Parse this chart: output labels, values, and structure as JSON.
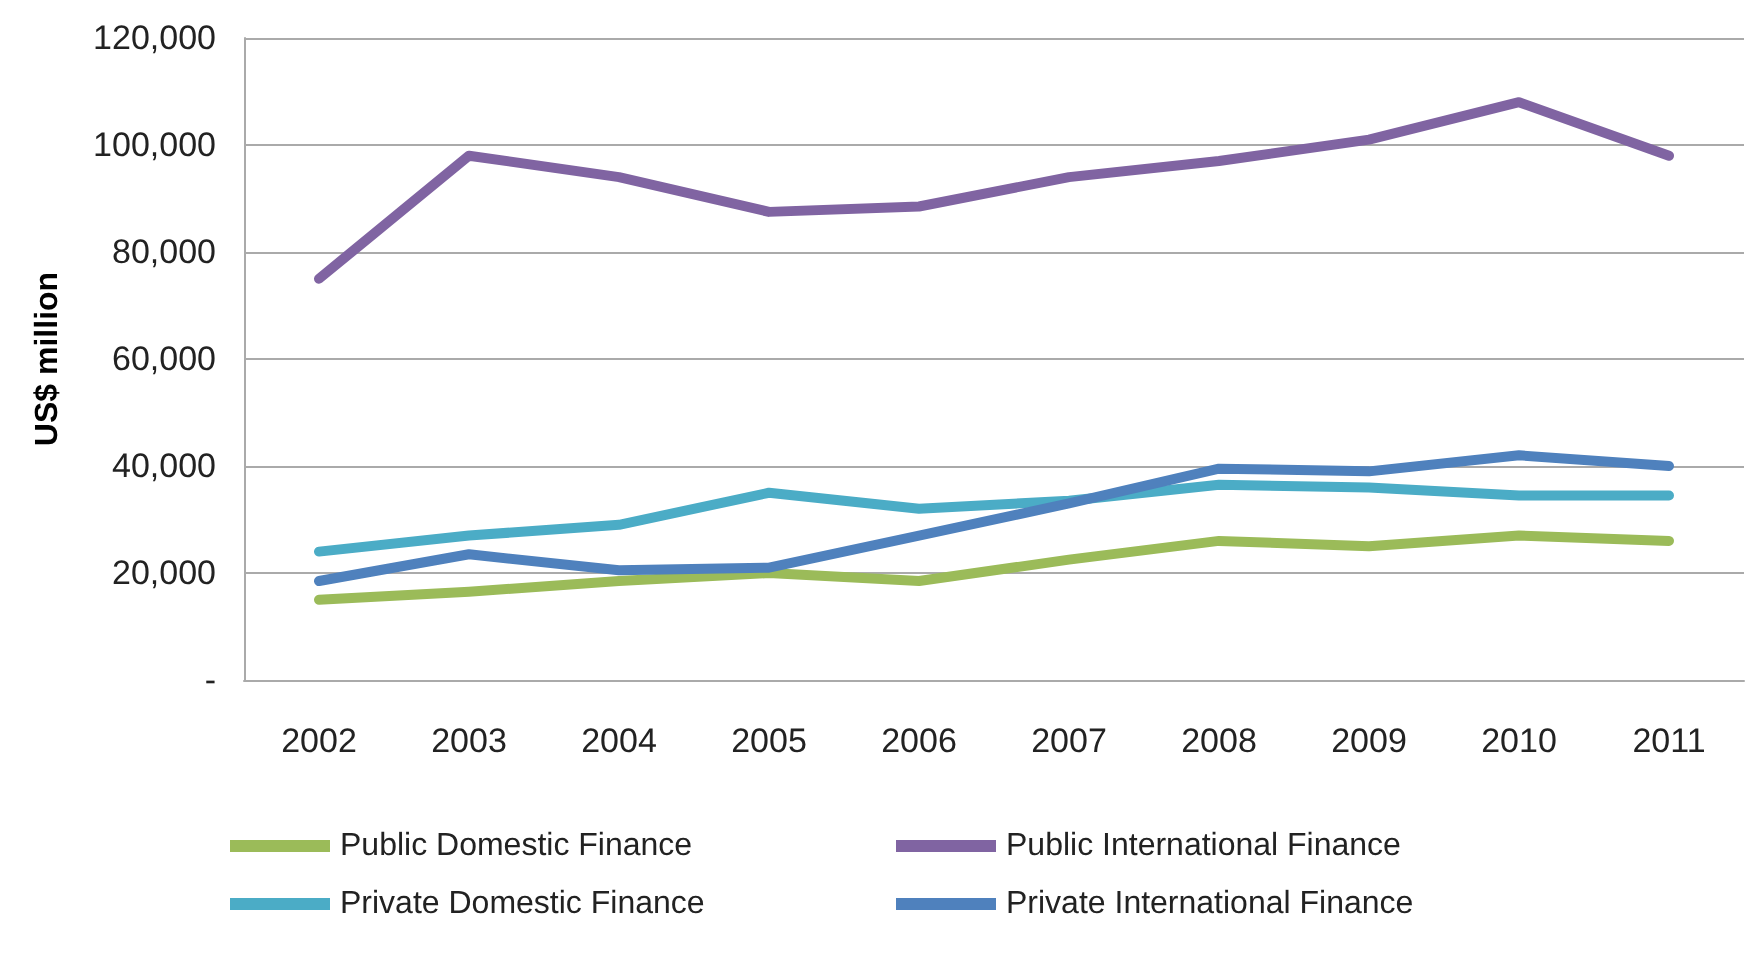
{
  "chart_data": {
    "type": "line",
    "ylabel": "US$ million",
    "categories": [
      "2002",
      "2003",
      "2004",
      "2005",
      "2006",
      "2007",
      "2008",
      "2009",
      "2010",
      "2011"
    ],
    "series": [
      {
        "name": "Public Domestic Finance",
        "color": "#9bbb59",
        "values": [
          15000,
          16500,
          18500,
          20000,
          18500,
          22500,
          26000,
          25000,
          27000,
          26000
        ]
      },
      {
        "name": "Public International Finance",
        "color": "#8064a2",
        "values": [
          75000,
          98000,
          94000,
          87500,
          88500,
          94000,
          97000,
          101000,
          108000,
          98000
        ]
      },
      {
        "name": "Private Domestic Finance",
        "color": "#4bacc6",
        "values": [
          24000,
          27000,
          29000,
          35000,
          32000,
          33500,
          36500,
          36000,
          34500,
          34500
        ]
      },
      {
        "name": "Private International Finance",
        "color": "#4f81bd",
        "values": [
          18500,
          23500,
          20500,
          21000,
          27000,
          33000,
          39500,
          39000,
          42000,
          40000
        ]
      }
    ],
    "ylim": [
      0,
      120000
    ],
    "yticks": [
      {
        "value": 0,
        "label": "-"
      },
      {
        "value": 20000,
        "label": "20,000"
      },
      {
        "value": 40000,
        "label": "40,000"
      },
      {
        "value": 60000,
        "label": "60,000"
      },
      {
        "value": 80000,
        "label": "80,000"
      },
      {
        "value": 100000,
        "label": "100,000"
      },
      {
        "value": 120000,
        "label": "120,000"
      }
    ],
    "grid": "y",
    "legend": "bottom",
    "marker": "none",
    "line_style": "solid"
  }
}
